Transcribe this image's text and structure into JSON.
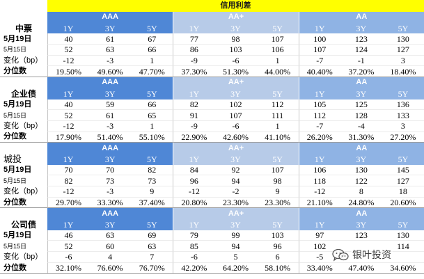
{
  "chart_data": {
    "type": "table",
    "title": "信用利差",
    "ratings": [
      "AAA",
      "AA+",
      "AA"
    ],
    "tenors": [
      "1Y",
      "3Y",
      "5Y"
    ],
    "row_labels": [
      "5月19日",
      "5月15日",
      "变化（bp）",
      "分位数"
    ],
    "sections": [
      {
        "name": "中票",
        "values": [
          [
            40,
            61,
            67,
            77,
            98,
            107,
            100,
            123,
            130
          ],
          [
            52,
            63,
            66,
            86,
            103,
            106,
            107,
            124,
            127
          ],
          [
            -12,
            -3,
            1,
            -9,
            -6,
            1,
            -7,
            -1,
            3
          ],
          [
            "19.50%",
            "49.60%",
            "47.70%",
            "37.30%",
            "51.30%",
            "44.00%",
            "40.40%",
            "37.20%",
            "18.40%"
          ]
        ]
      },
      {
        "name": "企业债",
        "values": [
          [
            40,
            59,
            66,
            82,
            102,
            112,
            105,
            125,
            136
          ],
          [
            52,
            61,
            65,
            91,
            107,
            111,
            112,
            128,
            133
          ],
          [
            -12,
            -3,
            1,
            -9,
            -6,
            1,
            -7,
            -4,
            3
          ],
          [
            "17.90%",
            "51.40%",
            "55.10%",
            "22.90%",
            "42.60%",
            "41.10%",
            "26.20%",
            "31.30%",
            "27.20%"
          ]
        ]
      },
      {
        "name": "城投",
        "values": [
          [
            70,
            70,
            82,
            84,
            92,
            107,
            106,
            130,
            145
          ],
          [
            82,
            73,
            73,
            96,
            94,
            98,
            118,
            122,
            127
          ],
          [
            -12,
            -3,
            9,
            -12,
            -2,
            9,
            -12,
            8,
            18
          ],
          [
            "29.70%",
            "33.30%",
            "37.40%",
            "20.80%",
            "23.30%",
            "23.30%",
            "21.10%",
            "24.80%",
            "20.60%"
          ]
        ]
      },
      {
        "name": "公司债",
        "values": [
          [
            46,
            63,
            69,
            79,
            99,
            103,
            97,
            123,
            130
          ],
          [
            52,
            60,
            63,
            85,
            94,
            96,
            102,
            null,
            114
          ],
          [
            -6,
            4,
            7,
            -6,
            5,
            6,
            -5,
            null,
            null
          ],
          [
            "32.10%",
            "76.60%",
            "76.70%",
            "42.20%",
            "64.20%",
            "58.10%",
            "33.40%",
            "47.40%",
            "34.60%"
          ]
        ]
      }
    ]
  },
  "colors": {
    "title_band": "#ffff00",
    "ratings": [
      "#4f87d6",
      "#b7cbe8",
      "#8fb3e4"
    ],
    "header_text": "#ffffff"
  },
  "watermark": {
    "icon": "wechat-icon",
    "text": "银叶投资"
  }
}
